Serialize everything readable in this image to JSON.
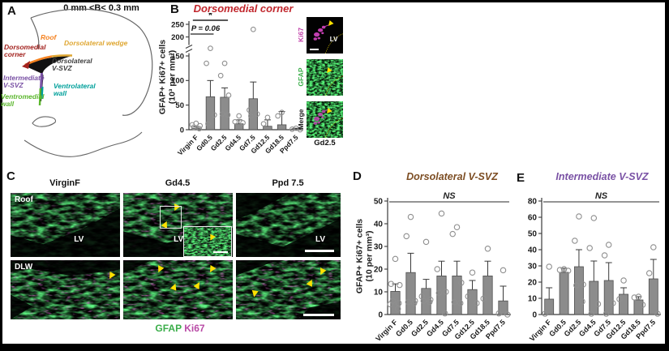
{
  "labels": {
    "panel_a": "A",
    "panel_b": "B",
    "panel_c": "C",
    "panel_d": "D",
    "panel_e": "E",
    "lv": "LV",
    "roof": "Roof",
    "dlw": "DLW",
    "ki67": "Ki67",
    "gfap": "GFAP",
    "merge": "Merge",
    "b_micro_caption": "Gd2.5",
    "caption_gfap": "GFAP",
    "caption_ki67": "Ki67",
    "c_columns": [
      "VirginF",
      "Gd4.5",
      "Ppd 7.5"
    ]
  },
  "panelA": {
    "title": "0 mm <B< 0.3 mm",
    "regions": [
      {
        "line1": "Roof",
        "line2": "",
        "color": "#f58220"
      },
      {
        "line1": "Dorsolateral wedge",
        "line2": "",
        "color": "#dfa733"
      },
      {
        "line1": "Dorsomedial",
        "line2": "corner",
        "color": "#a3231f"
      },
      {
        "line1": "Dorsolateral",
        "line2": "V-SVZ",
        "color": "#3f3f3f"
      },
      {
        "line1": "Intermediate",
        "line2": "V-SVZ",
        "color": "#7a52a5"
      },
      {
        "line1": "Ventrolateral",
        "line2": "wall",
        "color": "#00a09b"
      },
      {
        "line1": "Ventromedial",
        "line2": "wall",
        "color": "#5cb72e"
      }
    ]
  },
  "chart_data": [
    {
      "panel": "B",
      "type": "bar",
      "title": "Dorsomedial corner",
      "title_color": "#c1272d",
      "ylabel": [
        "GFAP+ Ki67+ cells",
        "(10³ per mm³)"
      ],
      "categories": [
        "Virgin F",
        "Gd0.5",
        "Gd2.5",
        "Gd4.5",
        "Gd7.5",
        "Gd12.5",
        "Gd18.5",
        "Ppd7.5"
      ],
      "values": [
        3,
        67,
        66,
        12,
        63,
        7,
        10,
        2
      ],
      "errors": [
        3,
        33,
        19,
        8,
        34,
        13,
        27,
        1
      ],
      "points": [
        [
          13,
          10,
          8,
          5,
          2
        ],
        [
          170,
          135,
          30,
          12
        ],
        [
          135,
          110,
          70,
          32,
          30
        ],
        [
          28,
          16,
          14
        ],
        [
          230,
          40,
          32,
          28
        ],
        [
          25,
          12
        ],
        [
          35,
          28
        ],
        [
          3,
          1,
          0
        ]
      ],
      "yticks": [
        0,
        50,
        100,
        150,
        200,
        250
      ],
      "ylim": [
        0,
        250
      ],
      "scale_anchors": [
        [
          0,
          0
        ],
        [
          150,
          0.7
        ],
        [
          200,
          0.88
        ],
        [
          250,
          1
        ]
      ],
      "axis_break_frac": 0.765,
      "annotations": [
        {
          "label": "*",
          "span": [
            0,
            2
          ],
          "y": 9,
          "style": "star"
        },
        {
          "label": "P = 0.06",
          "span": [
            0,
            1
          ],
          "y": 22,
          "style": "p",
          "underline": true
        }
      ]
    },
    {
      "panel": "D",
      "type": "bar",
      "title": "Dorsolateral V-SVZ",
      "title_color": "#7d4e24",
      "ylabel": [
        "GFAP+ Ki67+ cells",
        "(10 per mm³)"
      ],
      "categories": [
        "Virgin F",
        "Gd0.5",
        "Gd2.5",
        "Gd4.5",
        "Gd7.5",
        "Gd12.5",
        "Gd18.5",
        "Ppd7.5"
      ],
      "values": [
        10.2,
        18.5,
        11.5,
        17,
        17,
        11,
        17,
        6
      ],
      "errors": [
        3.3,
        8.5,
        4,
        6.5,
        6.5,
        4,
        6.5,
        6.5
      ],
      "points": [
        [
          24.5,
          13.5,
          13,
          6,
          5,
          4.5,
          2.5
        ],
        [
          43,
          34.5,
          6,
          5.5,
          5
        ],
        [
          32,
          8,
          6.5,
          6,
          5.5
        ],
        [
          44.5,
          20,
          10,
          9.5,
          0.5
        ],
        [
          38.5,
          35.5,
          14,
          5.5,
          5
        ],
        [
          18.5,
          8,
          5
        ],
        [
          29,
          7
        ],
        [
          19.5,
          0.5,
          0
        ]
      ],
      "yticks": [
        0,
        10,
        20,
        30,
        40,
        50
      ],
      "ylim": [
        0,
        50
      ],
      "scale_anchors": [
        [
          0,
          0
        ],
        [
          50,
          1
        ]
      ],
      "annotations": [
        {
          "label": "NS",
          "span": [
            0,
            7
          ],
          "y": 17,
          "style": "ns"
        }
      ]
    },
    {
      "panel": "E",
      "type": "bar",
      "title": "Intermediate V-SVZ",
      "title_color": "#7a52a5",
      "ylabel": [],
      "categories": [
        "Virgin F",
        "Gd0.5",
        "Gd2.5",
        "Gd4.5",
        "Gd7.5",
        "Gd12.5",
        "Gd18.5",
        "Ppd7.5"
      ],
      "values": [
        9.5,
        26,
        29.5,
        20.5,
        21,
        12.5,
        9,
        22
      ],
      "errors": [
        7,
        2.5,
        10.5,
        12.5,
        11,
        4,
        2,
        12
      ],
      "points": [
        [
          29.5,
          0.5
        ],
        [
          28,
          27.5,
          27
        ],
        [
          61,
          45.5,
          18.5,
          18,
          8
        ],
        [
          59.5,
          41,
          6.5,
          0.5
        ],
        [
          43,
          36.5,
          7,
          0.5
        ],
        [
          21,
          9.5
        ],
        [
          11,
          10.5,
          6
        ],
        [
          41.5,
          25.5,
          0.5
        ]
      ],
      "yticks": [
        0,
        10,
        20,
        30,
        40,
        50,
        60,
        80
      ],
      "ylim": [
        0,
        80
      ],
      "scale_anchors": [
        [
          0,
          0
        ],
        [
          60,
          0.857
        ],
        [
          80,
          1
        ]
      ],
      "annotations": [
        {
          "label": "NS",
          "span": [
            0,
            7
          ],
          "y": 17,
          "style": "ns"
        }
      ]
    }
  ],
  "style": {
    "bar_fill": "#8c8c8c",
    "bar_stroke": "#4f4f4f",
    "point_stroke": "#8f8f8f",
    "axis_color": "#3a3a3a"
  }
}
